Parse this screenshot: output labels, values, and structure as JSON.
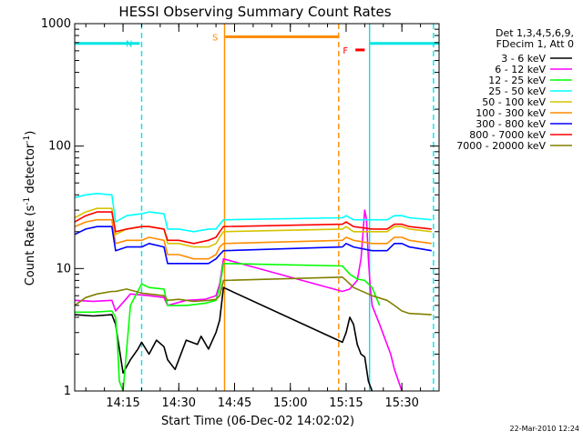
{
  "chart_data": {
    "type": "line",
    "title": "HESSI Observing Summary Count Rates",
    "xlabel": "Start Time (06-Dec-02 14:02:02)",
    "ylabel_main": "Count Rate (s",
    "ylabel_sup1": "-1",
    "ylabel_mid": " detector",
    "ylabel_sup2": "-1",
    "ylabel_end": ")",
    "y_scale": "log",
    "ylim": [
      1,
      1000
    ],
    "xlim_minutes": [
      0,
      98
    ],
    "x_ticks": [
      {
        "t": 13.0,
        "label": "14:15"
      },
      {
        "t": 28.0,
        "label": "14:30"
      },
      {
        "t": 43.0,
        "label": "14:45"
      },
      {
        "t": 58.0,
        "label": "15:00"
      },
      {
        "t": 73.0,
        "label": "15:15"
      },
      {
        "t": 88.0,
        "label": "15:30"
      }
    ],
    "y_ticks": [
      {
        "v": 1,
        "label": "1"
      },
      {
        "v": 10,
        "label": "10"
      },
      {
        "v": 100,
        "label": "100"
      },
      {
        "v": 1000,
        "label": "1000"
      }
    ],
    "legend_header": [
      "Det 1,3,4,5,6,9,",
      "FDecim 1, Att 0"
    ],
    "legend_position": "right",
    "timestamp": "22-Mar-2010 12:24",
    "series": [
      {
        "name": "3 - 6 keV",
        "color": "#000000",
        "x": [
          0,
          5,
          10,
          11,
          13,
          15,
          17,
          18,
          20,
          22,
          24,
          25,
          27,
          30,
          33,
          34,
          36,
          38,
          39,
          40,
          72,
          73,
          74,
          75,
          76,
          77,
          78,
          79,
          80
        ],
        "y": [
          4.2,
          4.1,
          4.2,
          3.5,
          1.4,
          1.8,
          2.2,
          2.5,
          2.0,
          2.6,
          2.3,
          1.8,
          1.5,
          2.6,
          2.4,
          2.8,
          2.2,
          3.0,
          3.8,
          7.0,
          2.5,
          3.0,
          4.0,
          3.5,
          2.4,
          2.0,
          1.9,
          1.2,
          1.0
        ]
      },
      {
        "name": "6 - 12 keV",
        "color": "#ff00ff",
        "x": [
          0,
          5,
          10,
          11,
          15,
          20,
          24,
          25,
          30,
          35,
          38,
          39,
          40,
          72,
          74,
          76,
          77,
          78,
          78.5,
          79,
          79.5,
          80,
          82,
          85,
          86,
          88
        ],
        "y": [
          5.5,
          5.4,
          5.5,
          4.5,
          6.2,
          6.0,
          5.8,
          5.0,
          5.5,
          5.6,
          6.0,
          7.5,
          12.0,
          6.5,
          6.8,
          8.0,
          12.0,
          30.0,
          25.0,
          12.0,
          7.0,
          5.0,
          3.5,
          2.0,
          1.5,
          1.0
        ]
      },
      {
        "name": "12 - 25 keV",
        "color": "#00ff00",
        "x": [
          0,
          5,
          10,
          11,
          11.5,
          12,
          13,
          15,
          18,
          20,
          24,
          25,
          30,
          35,
          38,
          39,
          40,
          72,
          74,
          76,
          78,
          80,
          82
        ],
        "y": [
          4.4,
          4.4,
          4.5,
          4.0,
          2.5,
          1.2,
          1.0,
          5.0,
          7.5,
          7.0,
          6.8,
          5.0,
          5.0,
          5.2,
          5.5,
          7.0,
          11.0,
          10.5,
          9.0,
          8.2,
          8.0,
          7.0,
          5.0
        ]
      },
      {
        "name": "25 - 50 keV",
        "color": "#00ffff",
        "x": [
          0,
          3,
          6,
          10,
          11,
          14,
          18,
          20,
          24,
          25,
          28,
          32,
          36,
          38,
          39,
          40,
          72,
          73,
          75,
          80,
          84,
          86,
          88,
          90,
          96
        ],
        "y": [
          38,
          40,
          41,
          40,
          24,
          27,
          28,
          29,
          28,
          21,
          21,
          20,
          21,
          21,
          23,
          25,
          26,
          27,
          25,
          25,
          25,
          27,
          27,
          26,
          25
        ]
      },
      {
        "name": "50 - 100 keV",
        "color": "#d4c400",
        "x": [
          0,
          3,
          6,
          10,
          11,
          14,
          18,
          20,
          24,
          25,
          28,
          32,
          36,
          38,
          39,
          40,
          72,
          73,
          75,
          80,
          84,
          86,
          88,
          90,
          96
        ],
        "y": [
          26,
          29,
          31,
          31,
          19,
          21,
          22,
          22,
          21,
          16,
          16,
          15,
          15,
          16,
          18,
          20,
          21,
          22,
          20,
          20,
          20,
          22,
          22,
          21,
          20
        ]
      },
      {
        "name": "100 - 300 keV",
        "color": "#ff8c00",
        "x": [
          0,
          3,
          6,
          10,
          11,
          14,
          18,
          20,
          24,
          25,
          28,
          32,
          36,
          38,
          39,
          40,
          72,
          73,
          75,
          80,
          84,
          86,
          88,
          90,
          96
        ],
        "y": [
          22,
          24,
          25,
          25,
          16,
          17,
          17,
          18,
          17,
          13,
          13,
          12,
          12,
          13,
          15,
          16,
          17,
          18,
          17,
          16,
          16,
          18,
          18,
          17,
          16
        ]
      },
      {
        "name": "300 - 800 keV",
        "color": "#0000ff",
        "x": [
          0,
          3,
          6,
          10,
          11,
          14,
          18,
          20,
          24,
          25,
          28,
          32,
          36,
          38,
          39,
          40,
          72,
          73,
          75,
          80,
          84,
          86,
          88,
          90,
          96
        ],
        "y": [
          19,
          21,
          22,
          22,
          14,
          15,
          15,
          16,
          15,
          11,
          11,
          11,
          11,
          12,
          13,
          14,
          15,
          16,
          15,
          14,
          14,
          16,
          16,
          15,
          14
        ]
      },
      {
        "name": "800 - 7000 keV",
        "color": "#ff0000",
        "x": [
          0,
          3,
          6,
          10,
          11,
          14,
          18,
          20,
          24,
          25,
          28,
          32,
          36,
          38,
          39,
          40,
          72,
          73,
          75,
          80,
          84,
          86,
          88,
          90,
          96
        ],
        "y": [
          24,
          27,
          29,
          29,
          20,
          21,
          22,
          22,
          21,
          17,
          17,
          16,
          17,
          18,
          20,
          22,
          23,
          24,
          22,
          21,
          21,
          23,
          23,
          22,
          21
        ]
      },
      {
        "name": "7000 - 20000 keV",
        "color": "#808000",
        "x": [
          0,
          3,
          6,
          10,
          11,
          14,
          18,
          20,
          24,
          25,
          28,
          32,
          36,
          38,
          39,
          40,
          72,
          73,
          75,
          80,
          84,
          86,
          88,
          90,
          96
        ],
        "y": [
          5.0,
          5.8,
          6.2,
          6.5,
          6.5,
          6.8,
          6.3,
          6.2,
          6.0,
          5.5,
          5.6,
          5.4,
          5.5,
          5.6,
          6.0,
          8.0,
          8.5,
          8.0,
          7.0,
          6.0,
          5.5,
          5.0,
          4.5,
          4.3,
          4.2
        ]
      }
    ],
    "flags": [
      {
        "label": "N",
        "color": "#00e5e5",
        "level": 690,
        "segments": [
          [
            0,
            17.5
          ],
          [
            79.5,
            98
          ]
        ],
        "labelled_at": 17.5
      },
      {
        "label": "S",
        "color": "#ff8c00",
        "level": 780,
        "segments": [
          [
            40.5,
            71
          ]
        ],
        "labelled_at": 40.5
      },
      {
        "label": "F",
        "color": "#ff0000",
        "level": 610,
        "segments": [
          [
            75.5,
            78
          ]
        ],
        "labelled_at": 75.5
      }
    ],
    "markers": [
      {
        "t": 18.0,
        "color": "#00e5e5",
        "style": "dashed"
      },
      {
        "t": 40.3,
        "color": "#ff8c00",
        "style": "solid"
      },
      {
        "t": 71.0,
        "color": "#ff8c00",
        "style": "dashed"
      },
      {
        "t": 79.3,
        "color": "#00e5e5",
        "style": "solid"
      },
      {
        "t": 96.5,
        "color": "#00e5e5",
        "style": "dashed"
      }
    ]
  }
}
